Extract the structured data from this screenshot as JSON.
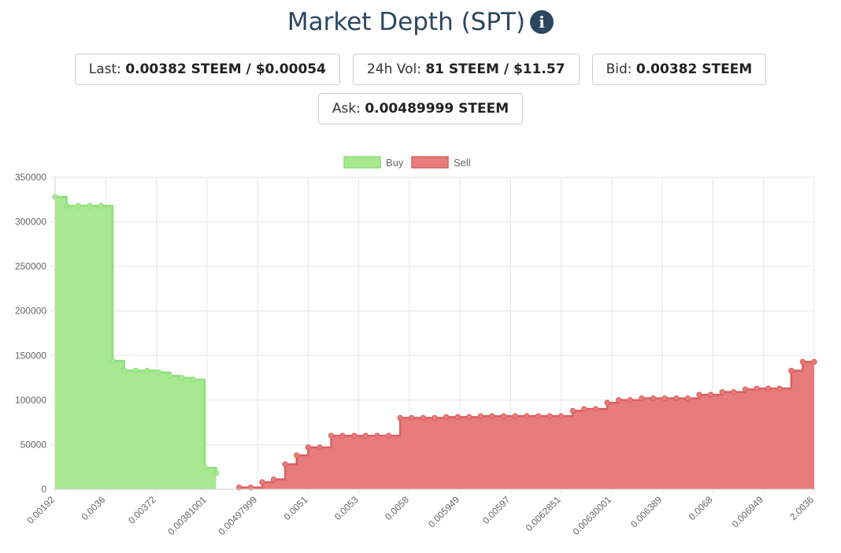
{
  "header": {
    "title": "Market Depth (SPT)",
    "info_icon": "info-icon"
  },
  "stats": {
    "last": {
      "label": "Last:",
      "value": "0.00382 STEEM / $0.00054"
    },
    "vol": {
      "label": "24h Vol:",
      "value": "81 STEEM / $11.57"
    },
    "bid": {
      "label": "Bid:",
      "value": "0.00382 STEEM"
    },
    "ask": {
      "label": "Ask:",
      "value": "0.00489999 STEEM"
    }
  },
  "chart_data": {
    "type": "area",
    "stepped": true,
    "grid": true,
    "legend_position": "top-center",
    "ylim": [
      0,
      350000
    ],
    "y_ticks": [
      "350000",
      "300000",
      "250000",
      "200000",
      "150000",
      "100000",
      "50000",
      "0"
    ],
    "x_ticks": [
      "0.00192",
      "0.0036",
      "0.00372",
      "0.00381001",
      "0.00497999",
      "0.0051",
      "0.0053",
      "0.0058",
      "0.005949",
      "0.00597",
      "0.0062851",
      "0.00630001",
      "0.006389",
      "0.0068",
      "0.006949",
      "2.0036"
    ],
    "point_count": 65,
    "series": [
      {
        "name": "Buy",
        "color": "#a8e890",
        "line_color": "#8ee07a",
        "points": [
          [
            0,
            328000
          ],
          [
            1,
            318000
          ],
          [
            2,
            318000
          ],
          [
            3,
            318000
          ],
          [
            4,
            318000
          ],
          [
            5,
            144000
          ],
          [
            6,
            133000
          ],
          [
            7,
            133000
          ],
          [
            8,
            133000
          ],
          [
            9,
            131000
          ],
          [
            10,
            127000
          ],
          [
            11,
            125000
          ],
          [
            12,
            123000
          ],
          [
            13,
            24000
          ],
          [
            14,
            18000
          ]
        ]
      },
      {
        "name": "Sell",
        "color": "#e87c7c",
        "line_color": "#d96060",
        "points": [
          [
            16,
            2000
          ],
          [
            17,
            2000
          ],
          [
            18,
            8000
          ],
          [
            19,
            11000
          ],
          [
            20,
            28000
          ],
          [
            21,
            38000
          ],
          [
            22,
            47000
          ],
          [
            23,
            47000
          ],
          [
            24,
            60000
          ],
          [
            25,
            60000
          ],
          [
            26,
            60000
          ],
          [
            27,
            60000
          ],
          [
            28,
            60000
          ],
          [
            29,
            60000
          ],
          [
            30,
            80000
          ],
          [
            31,
            80000
          ],
          [
            32,
            80000
          ],
          [
            33,
            80000
          ],
          [
            34,
            81000
          ],
          [
            35,
            81000
          ],
          [
            36,
            81000
          ],
          [
            37,
            82000
          ],
          [
            38,
            82000
          ],
          [
            39,
            82000
          ],
          [
            40,
            82000
          ],
          [
            41,
            82000
          ],
          [
            42,
            82000
          ],
          [
            43,
            82000
          ],
          [
            44,
            82000
          ],
          [
            45,
            88000
          ],
          [
            46,
            90000
          ],
          [
            47,
            90000
          ],
          [
            48,
            97000
          ],
          [
            49,
            100000
          ],
          [
            50,
            100000
          ],
          [
            51,
            102000
          ],
          [
            52,
            102000
          ],
          [
            53,
            102000
          ],
          [
            54,
            102000
          ],
          [
            55,
            102000
          ],
          [
            56,
            106000
          ],
          [
            57,
            106000
          ],
          [
            58,
            109000
          ],
          [
            59,
            109000
          ],
          [
            60,
            112000
          ],
          [
            61,
            113000
          ],
          [
            62,
            113000
          ],
          [
            63,
            113000
          ],
          [
            64,
            133000
          ],
          [
            65,
            143000
          ],
          [
            66,
            143000
          ]
        ]
      }
    ]
  }
}
